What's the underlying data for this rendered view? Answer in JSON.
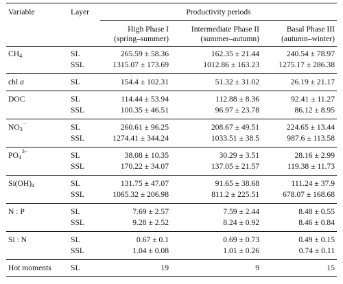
{
  "headers": {
    "variable": "Variable",
    "layer": "Layer",
    "periods": "Productivity periods",
    "phase1_line1": "High Phase I",
    "phase1_line2": "(spring–summer)",
    "phase2_line1": "Intermediate Phase II",
    "phase2_line2": "(summer–autumn)",
    "phase3_line1": "Basal Phase III",
    "phase3_line2": "(autumn–winter)"
  },
  "rows": [
    {
      "var_main": "CH",
      "var_sub": "4",
      "var_sup": "",
      "var_tail": "",
      "data": [
        {
          "layer": "SL",
          "p1": "265.59 ± 58.36",
          "p2": "162.35 ± 21.44",
          "p3": "240.54 ± 78.97"
        },
        {
          "layer": "SSL",
          "p1": "1315.07 ± 173.69",
          "p2": "1012.86 ± 163.23",
          "p3": "1275.17 ± 286.38"
        }
      ]
    },
    {
      "var_main": "chl ",
      "var_sub": "",
      "var_sup": "",
      "var_tail": "a",
      "data": [
        {
          "layer": "SL",
          "p1": "154.4 ± 102.31",
          "p2": "51.32 ± 31.02",
          "p3": "26.19 ± 21.17"
        }
      ]
    },
    {
      "var_main": "DOC",
      "var_sub": "",
      "var_sup": "",
      "var_tail": "",
      "data": [
        {
          "layer": "SL",
          "p1": "114.44 ± 53.94",
          "p2": "112.88 ± 8.36",
          "p3": "92.41 ± 11.27"
        },
        {
          "layer": "SSL",
          "p1": "100.35 ± 46.51",
          "p2": "96.97 ± 23.78",
          "p3": "86.12 ± 8.95"
        }
      ]
    },
    {
      "var_main": "NO",
      "var_sub": "3",
      "var_sup": "−",
      "var_tail": "",
      "data": [
        {
          "layer": "SL",
          "p1": "260.61 ± 96.25",
          "p2": "208.67 ± 49.51",
          "p3": "224.65 ± 13.44"
        },
        {
          "layer": "SSL",
          "p1": "1274.41 ± 344.24",
          "p2": "1033.51 ± 38.5",
          "p3": "987.6 ± 113.58"
        }
      ]
    },
    {
      "var_main": "PO",
      "var_sub": "4",
      "var_sup": "3−",
      "var_tail": "",
      "data": [
        {
          "layer": "SL",
          "p1": "38.08 ± 10.35",
          "p2": "30.29 ± 3.51",
          "p3": "28.16 ± 2.99"
        },
        {
          "layer": "SSL",
          "p1": "170.22 ± 34.07",
          "p2": "137.05 ± 21.57",
          "p3": "119.38 ± 11.73"
        }
      ]
    },
    {
      "var_main": "Si(OH)",
      "var_sub": "4",
      "var_sup": "",
      "var_tail": "",
      "data": [
        {
          "layer": "SL",
          "p1": "131.75 ± 47.07",
          "p2": "91.65 ± 38.68",
          "p3": "111.24 ± 37.9"
        },
        {
          "layer": "SSL",
          "p1": "1065.32 ± 206.98",
          "p2": "811.2 ± 225.51",
          "p3": "678.07 ± 168.68"
        }
      ]
    },
    {
      "var_main": "N : P",
      "var_sub": "",
      "var_sup": "",
      "var_tail": "",
      "data": [
        {
          "layer": "SL",
          "p1": "7.69 ± 2.57",
          "p2": "7.59 ± 2.44",
          "p3": "8.48 ± 0.55"
        },
        {
          "layer": "SSL",
          "p1": "9.28 ± 2.52",
          "p2": "8.24 ± 0.92",
          "p3": "8.46 ± 0.84"
        }
      ]
    },
    {
      "var_main": "Si : N",
      "var_sub": "",
      "var_sup": "",
      "var_tail": "",
      "data": [
        {
          "layer": "SL",
          "p1": "0.67 ± 0.1",
          "p2": "0.69 ± 0.73",
          "p3": "0.49 ± 0.15"
        },
        {
          "layer": "SSL",
          "p1": "1.04 ± 0.08",
          "p2": "1.01 ± 0.26",
          "p3": "0.74 ± 0.11"
        }
      ]
    },
    {
      "var_main": "Hot moments",
      "var_sub": "",
      "var_sup": "",
      "var_tail": "",
      "data": [
        {
          "layer": "SL",
          "p1": "19",
          "p2": "9",
          "p3": "15"
        }
      ]
    }
  ]
}
